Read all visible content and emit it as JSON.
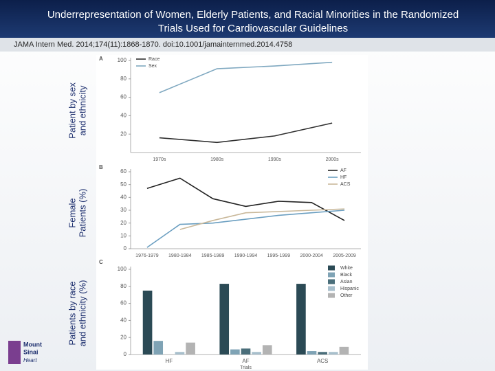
{
  "slide": {
    "title_lines": [
      "Underrepresentation of Women, Elderly Patients, and Racial Minorities in the Randomized",
      "Trials Used for Cardiovascular Guidelines"
    ],
    "citation": "JAMA Intern Med. 2014;174(11):1868-1870. doi:10.1001/jamainternmed.2014.4758",
    "logo_lines": [
      "Mount",
      "Sinai",
      "Heart"
    ]
  },
  "chart_data": [
    {
      "type": "line",
      "panel": "A",
      "y_label_lines": [
        "Patient by sex",
        "and ethnicity"
      ],
      "categories": [
        "1970s",
        "1980s",
        "1990s",
        "2000s"
      ],
      "series": [
        {
          "name": "Race",
          "color": "#2f2f2f",
          "values": [
            16,
            11,
            18,
            32
          ]
        },
        {
          "name": "Sex",
          "color": "#7fa8c0",
          "values": [
            65,
            91,
            94,
            98
          ]
        }
      ],
      "ylim": [
        0,
        100
      ],
      "yticks": [
        20,
        40,
        60,
        80,
        100
      ],
      "legend": "upper left"
    },
    {
      "type": "line",
      "panel": "B",
      "y_label_lines": [
        "Female",
        "Patients (%)"
      ],
      "categories": [
        "1976-1979",
        "1980-1984",
        "1985-1989",
        "1990-1994",
        "1995-1999",
        "2000-2004",
        "2005-2009"
      ],
      "series": [
        {
          "name": "AF",
          "color": "#222222",
          "values": [
            47,
            55,
            39,
            33,
            37,
            36,
            22
          ]
        },
        {
          "name": "HF",
          "color": "#6a9ec0",
          "values": [
            1,
            19,
            20,
            23,
            26,
            28,
            30
          ]
        },
        {
          "name": "ACS",
          "color": "#c9b89a",
          "values": [
            null,
            15,
            22,
            28,
            29,
            30,
            31
          ]
        }
      ],
      "ylim": [
        0,
        60
      ],
      "yticks": [
        0,
        10,
        20,
        30,
        40,
        50,
        60
      ],
      "legend": "upper right"
    },
    {
      "type": "bar",
      "panel": "C",
      "y_label_lines": [
        "Patients by race",
        "and ethnicity (%)"
      ],
      "x_label": "Trials",
      "categories": [
        "HF",
        "AF",
        "ACS"
      ],
      "series": [
        {
          "name": "White",
          "color": "#2b4a55",
          "values": [
            75,
            83,
            83
          ]
        },
        {
          "name": "Black",
          "color": "#7fa3b5",
          "values": [
            16,
            6,
            4
          ]
        },
        {
          "name": "Asian",
          "color": "#4a6e7a",
          "values": [
            0,
            7,
            3
          ]
        },
        {
          "name": "Hispanic",
          "color": "#a8bfcc",
          "values": [
            3,
            3,
            3
          ]
        },
        {
          "name": "Other",
          "color": "#b3b3b3",
          "values": [
            14,
            11,
            9
          ]
        }
      ],
      "ylim": [
        0,
        100
      ],
      "yticks": [
        0,
        20,
        40,
        60,
        80,
        100
      ],
      "legend": "upper right"
    }
  ]
}
